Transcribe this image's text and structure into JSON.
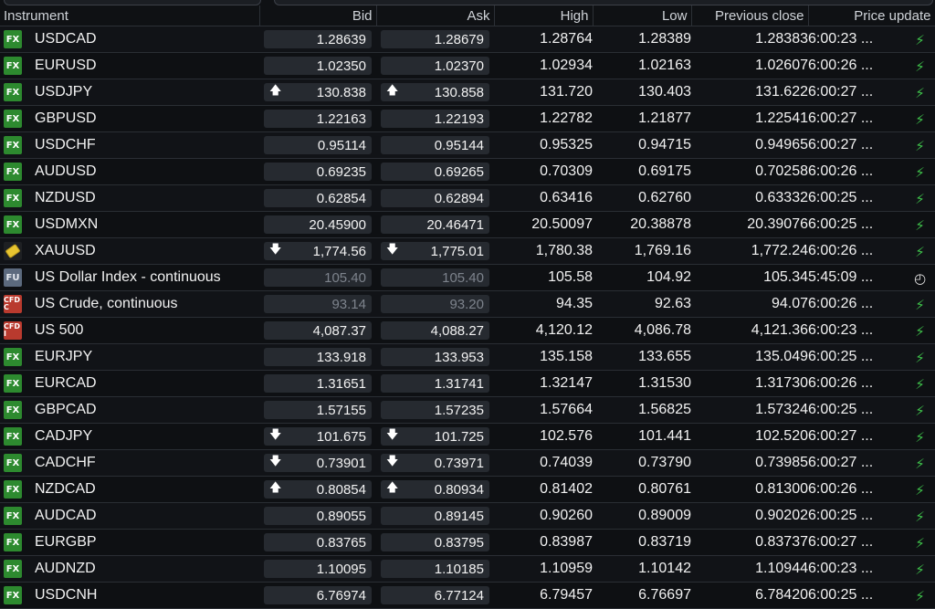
{
  "columns": {
    "instrument": "Instrument",
    "bid": "Bid",
    "ask": "Ask",
    "high": "High",
    "low": "Low",
    "prev_close": "Previous close",
    "price_update": "Price update"
  },
  "colors": {
    "fx_badge": "#2d8a2f",
    "cfd_badge": "#b93a2e",
    "fu_badge": "#5c6a7e",
    "bolt": "#3ec04a"
  },
  "rows": [
    {
      "badge": "FX",
      "icon": "fx",
      "name": "USDCAD",
      "bid": "1.28639",
      "ask": "1.28679",
      "high": "1.28764",
      "low": "1.28389",
      "prev": "1.28383",
      "time": "6:00:23 ...",
      "arrow": "",
      "muted": false,
      "upd": "bolt"
    },
    {
      "badge": "FX",
      "icon": "fx",
      "name": "EURUSD",
      "bid": "1.02350",
      "ask": "1.02370",
      "high": "1.02934",
      "low": "1.02163",
      "prev": "1.02607",
      "time": "6:00:26 ...",
      "arrow": "",
      "muted": false,
      "upd": "bolt"
    },
    {
      "badge": "FX",
      "icon": "fx",
      "name": "USDJPY",
      "bid": "130.838",
      "ask": "130.858",
      "high": "131.720",
      "low": "130.403",
      "prev": "131.622",
      "time": "6:00:27 ...",
      "arrow": "up",
      "muted": false,
      "upd": "bolt"
    },
    {
      "badge": "FX",
      "icon": "fx",
      "name": "GBPUSD",
      "bid": "1.22163",
      "ask": "1.22193",
      "high": "1.22782",
      "low": "1.21877",
      "prev": "1.22541",
      "time": "6:00:27 ...",
      "arrow": "",
      "muted": false,
      "upd": "bolt"
    },
    {
      "badge": "FX",
      "icon": "fx",
      "name": "USDCHF",
      "bid": "0.95114",
      "ask": "0.95144",
      "high": "0.95325",
      "low": "0.94715",
      "prev": "0.94965",
      "time": "6:00:27 ...",
      "arrow": "",
      "muted": false,
      "upd": "bolt"
    },
    {
      "badge": "FX",
      "icon": "fx",
      "name": "AUDUSD",
      "bid": "0.69235",
      "ask": "0.69265",
      "high": "0.70309",
      "low": "0.69175",
      "prev": "0.70258",
      "time": "6:00:26 ...",
      "arrow": "",
      "muted": false,
      "upd": "bolt"
    },
    {
      "badge": "FX",
      "icon": "fx",
      "name": "NZDUSD",
      "bid": "0.62854",
      "ask": "0.62894",
      "high": "0.63416",
      "low": "0.62760",
      "prev": "0.63332",
      "time": "6:00:25 ...",
      "arrow": "",
      "muted": false,
      "upd": "bolt"
    },
    {
      "badge": "FX",
      "icon": "fx",
      "name": "USDMXN",
      "bid": "20.45900",
      "ask": "20.46471",
      "high": "20.50097",
      "low": "20.38878",
      "prev": "20.39076",
      "time": "6:00:25 ...",
      "arrow": "",
      "muted": false,
      "upd": "bolt"
    },
    {
      "badge": "",
      "icon": "metal",
      "name": "XAUUSD",
      "bid": "1,774.56",
      "ask": "1,775.01",
      "high": "1,780.38",
      "low": "1,769.16",
      "prev": "1,772.24",
      "time": "6:00:26 ...",
      "arrow": "down",
      "muted": false,
      "upd": "bolt"
    },
    {
      "badge": "FU",
      "icon": "fu",
      "name": "US Dollar Index - continuous",
      "bid": "105.40",
      "ask": "105.40",
      "high": "105.58",
      "low": "104.92",
      "prev": "105.34",
      "time": "5:45:09 ...",
      "arrow": "",
      "muted": true,
      "upd": "clock"
    },
    {
      "badge": "CFD C",
      "icon": "cfd",
      "name": "US Crude, continuous",
      "bid": "93.14",
      "ask": "93.20",
      "high": "94.35",
      "low": "92.63",
      "prev": "94.07",
      "time": "6:00:26 ...",
      "arrow": "",
      "muted": true,
      "upd": "bolt"
    },
    {
      "badge": "CFD I",
      "icon": "cfd",
      "name": "US 500",
      "bid": "4,087.37",
      "ask": "4,088.27",
      "high": "4,120.12",
      "low": "4,086.78",
      "prev": "4,121.36",
      "time": "6:00:23 ...",
      "arrow": "",
      "muted": false,
      "upd": "bolt"
    },
    {
      "badge": "FX",
      "icon": "fx",
      "name": "EURJPY",
      "bid": "133.918",
      "ask": "133.953",
      "high": "135.158",
      "low": "133.655",
      "prev": "135.049",
      "time": "6:00:25 ...",
      "arrow": "",
      "muted": false,
      "upd": "bolt"
    },
    {
      "badge": "FX",
      "icon": "fx",
      "name": "EURCAD",
      "bid": "1.31651",
      "ask": "1.31741",
      "high": "1.32147",
      "low": "1.31530",
      "prev": "1.31730",
      "time": "6:00:26 ...",
      "arrow": "",
      "muted": false,
      "upd": "bolt"
    },
    {
      "badge": "FX",
      "icon": "fx",
      "name": "GBPCAD",
      "bid": "1.57155",
      "ask": "1.57235",
      "high": "1.57664",
      "low": "1.56825",
      "prev": "1.57324",
      "time": "6:00:25 ...",
      "arrow": "",
      "muted": false,
      "upd": "bolt"
    },
    {
      "badge": "FX",
      "icon": "fx",
      "name": "CADJPY",
      "bid": "101.675",
      "ask": "101.725",
      "high": "102.576",
      "low": "101.441",
      "prev": "102.520",
      "time": "6:00:27 ...",
      "arrow": "down",
      "muted": false,
      "upd": "bolt"
    },
    {
      "badge": "FX",
      "icon": "fx",
      "name": "CADCHF",
      "bid": "0.73901",
      "ask": "0.73971",
      "high": "0.74039",
      "low": "0.73790",
      "prev": "0.73985",
      "time": "6:00:27 ...",
      "arrow": "down",
      "muted": false,
      "upd": "bolt"
    },
    {
      "badge": "FX",
      "icon": "fx",
      "name": "NZDCAD",
      "bid": "0.80854",
      "ask": "0.80934",
      "high": "0.81402",
      "low": "0.80761",
      "prev": "0.81300",
      "time": "6:00:26 ...",
      "arrow": "up",
      "muted": false,
      "upd": "bolt"
    },
    {
      "badge": "FX",
      "icon": "fx",
      "name": "AUDCAD",
      "bid": "0.89055",
      "ask": "0.89145",
      "high": "0.90260",
      "low": "0.89009",
      "prev": "0.90202",
      "time": "6:00:25 ...",
      "arrow": "",
      "muted": false,
      "upd": "bolt"
    },
    {
      "badge": "FX",
      "icon": "fx",
      "name": "EURGBP",
      "bid": "0.83765",
      "ask": "0.83795",
      "high": "0.83987",
      "low": "0.83719",
      "prev": "0.83737",
      "time": "6:00:27 ...",
      "arrow": "",
      "muted": false,
      "upd": "bolt"
    },
    {
      "badge": "FX",
      "icon": "fx",
      "name": "AUDNZD",
      "bid": "1.10095",
      "ask": "1.10185",
      "high": "1.10959",
      "low": "1.10142",
      "prev": "1.10944",
      "time": "6:00:23 ...",
      "arrow": "",
      "muted": false,
      "upd": "bolt"
    },
    {
      "badge": "FX",
      "icon": "fx",
      "name": "USDCNH",
      "bid": "6.76974",
      "ask": "6.77124",
      "high": "6.79457",
      "low": "6.76697",
      "prev": "6.78420",
      "time": "6:00:25 ...",
      "arrow": "",
      "muted": false,
      "upd": "bolt"
    }
  ]
}
